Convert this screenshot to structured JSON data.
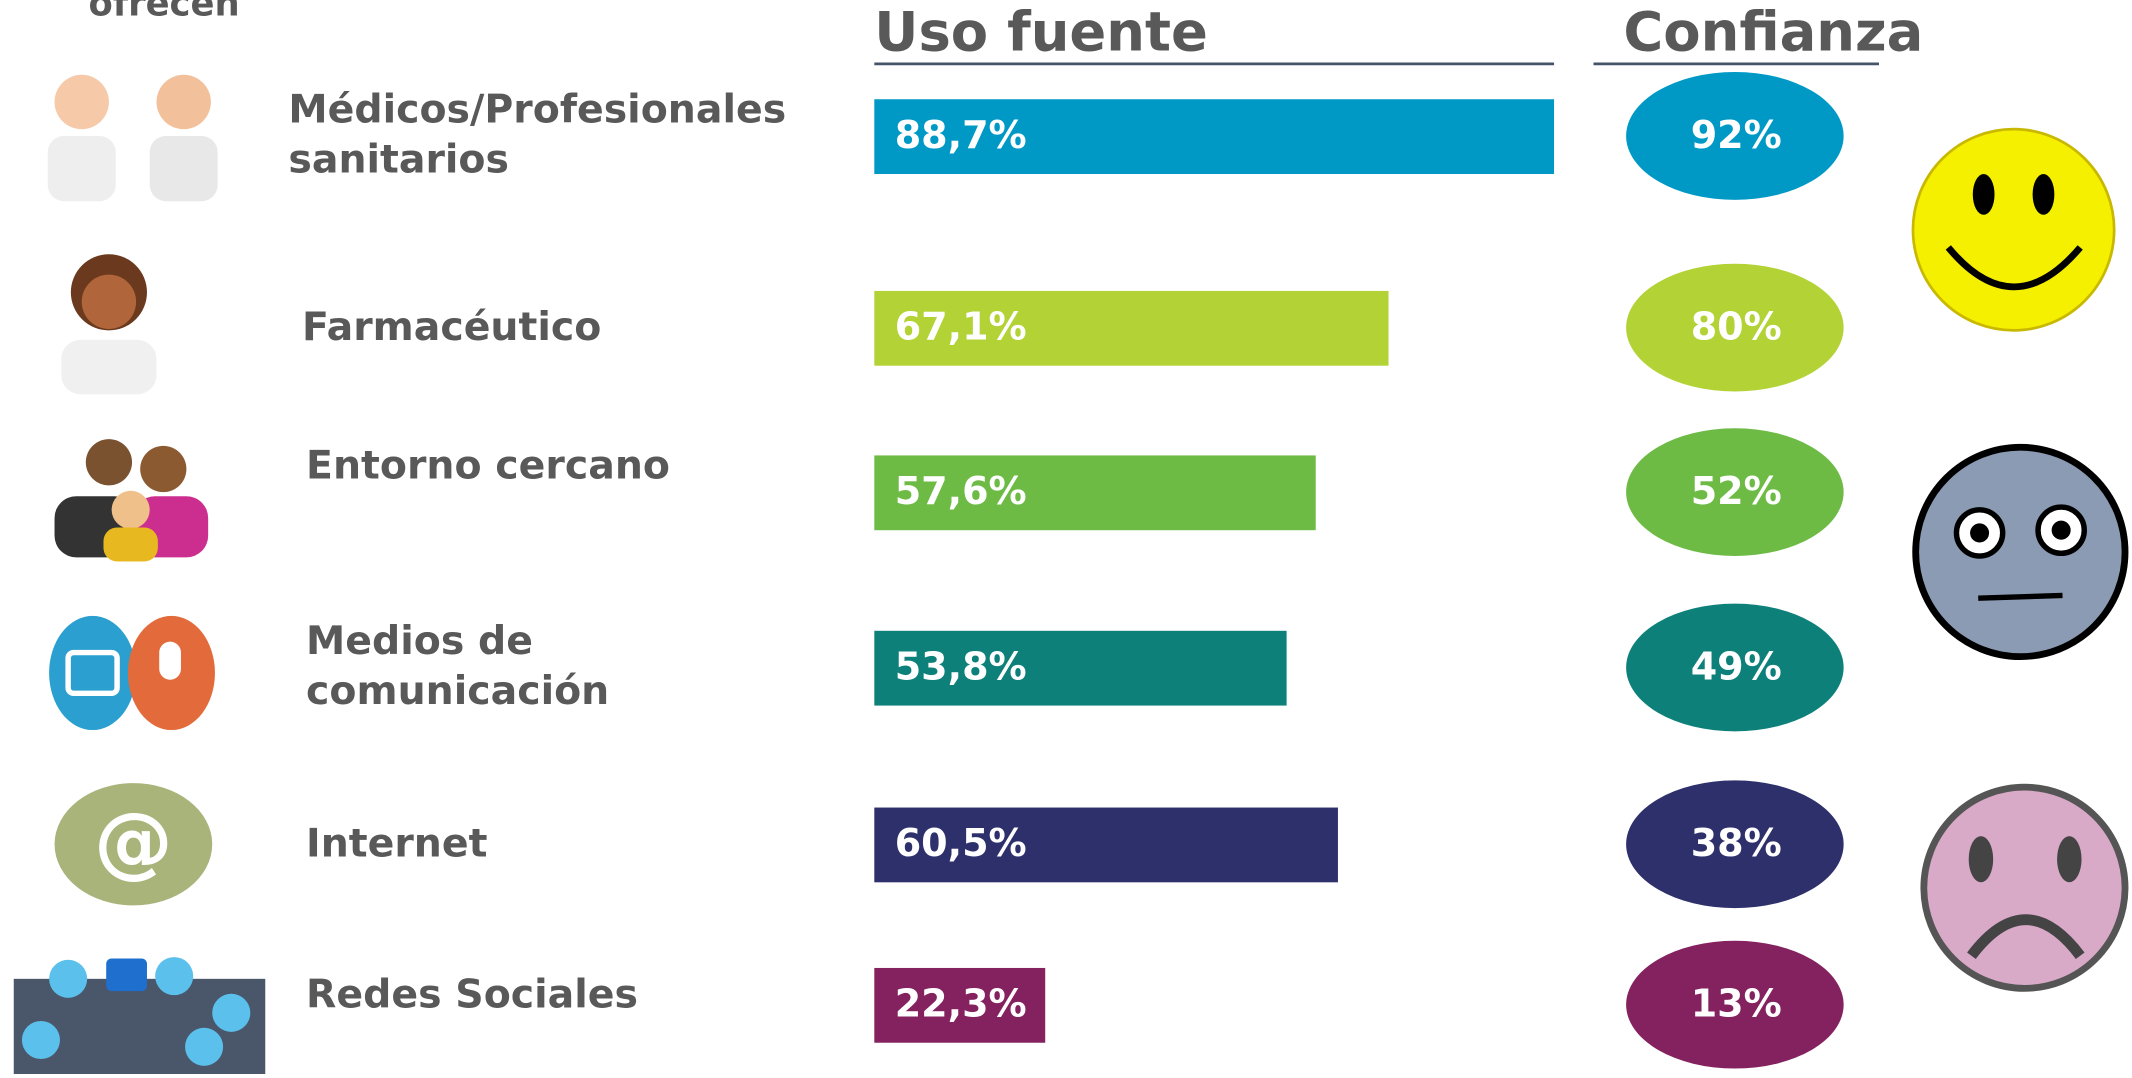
{
  "chart_data": {
    "type": "bar",
    "top_label": "ofrecen",
    "headers": [
      "Uso fuente",
      "Confianza"
    ],
    "categories": [
      "Médicos/Profesionales sanitarios",
      "Farmacéutico",
      "Entorno cercano",
      "Medios de comunicación",
      "Internet",
      "Redes Sociales"
    ],
    "colors": [
      "#0099c6",
      "#b2d235",
      "#6dbb45",
      "#0e807a",
      "#2e306b",
      "#84215f"
    ],
    "series": [
      {
        "name": "Uso fuente",
        "values": [
          88.7,
          67.1,
          57.6,
          53.8,
          60.5,
          22.3
        ],
        "value_labels": [
          "88,7%",
          "67,1%",
          "57,6%",
          "53,8%",
          "60,5%",
          "22,3%"
        ]
      },
      {
        "name": "Confianza",
        "values": [
          92,
          80,
          52,
          49,
          38,
          13
        ],
        "value_labels": [
          "92%",
          "80%",
          "52%",
          "49%",
          "38%",
          "13%"
        ]
      }
    ]
  }
}
